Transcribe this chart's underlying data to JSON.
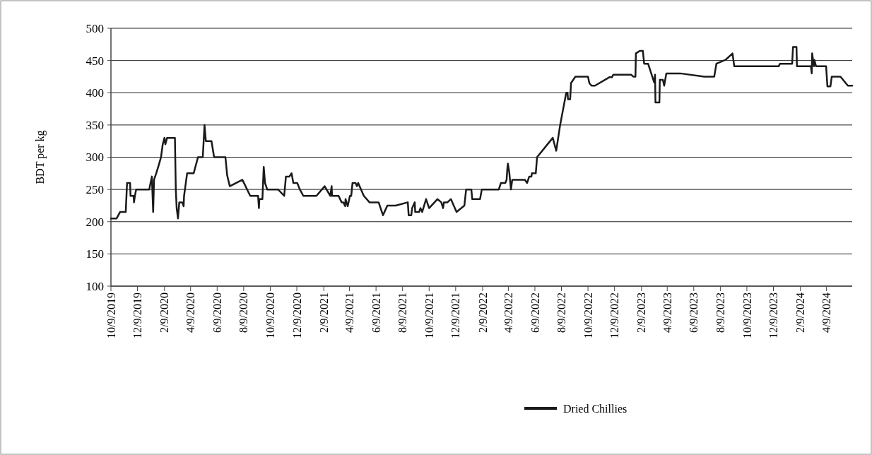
{
  "chart_data": {
    "type": "line",
    "ylabel": "BDT per kg",
    "ylim": [
      100,
      500
    ],
    "yticks": [
      100,
      150,
      200,
      250,
      300,
      350,
      400,
      450,
      500
    ],
    "grid": "y",
    "legend": "bottom",
    "line_style": "solid",
    "marker": "none",
    "xlim": [
      "2019-10-09",
      "2024-06-07"
    ],
    "xticks": [
      {
        "value": "2019-10-09",
        "label": "10/9/2019"
      },
      {
        "value": "2019-12-09",
        "label": "12/9/2019"
      },
      {
        "value": "2020-02-09",
        "label": "2/9/2020"
      },
      {
        "value": "2020-04-09",
        "label": "4/9/2020"
      },
      {
        "value": "2020-06-09",
        "label": "6/9/2020"
      },
      {
        "value": "2020-08-09",
        "label": "8/9/2020"
      },
      {
        "value": "2020-10-09",
        "label": "10/9/2020"
      },
      {
        "value": "2020-12-09",
        "label": "12/9/2020"
      },
      {
        "value": "2021-02-09",
        "label": "2/9/2021"
      },
      {
        "value": "2021-04-09",
        "label": "4/9/2021"
      },
      {
        "value": "2021-06-09",
        "label": "6/9/2021"
      },
      {
        "value": "2021-08-09",
        "label": "8/9/2021"
      },
      {
        "value": "2021-10-09",
        "label": "10/9/2021"
      },
      {
        "value": "2021-12-09",
        "label": "12/9/2021"
      },
      {
        "value": "2022-02-09",
        "label": "2/9/2022"
      },
      {
        "value": "2022-04-09",
        "label": "4/9/2022"
      },
      {
        "value": "2022-06-09",
        "label": "6/9/2022"
      },
      {
        "value": "2022-08-09",
        "label": "8/9/2022"
      },
      {
        "value": "2022-10-09",
        "label": "10/9/2022"
      },
      {
        "value": "2022-12-09",
        "label": "12/9/2022"
      },
      {
        "value": "2023-02-09",
        "label": "2/9/2023"
      },
      {
        "value": "2023-04-09",
        "label": "4/9/2023"
      },
      {
        "value": "2023-06-09",
        "label": "6/9/2023"
      },
      {
        "value": "2023-08-09",
        "label": "8/9/2023"
      },
      {
        "value": "2023-10-09",
        "label": "10/9/2023"
      },
      {
        "value": "2023-12-09",
        "label": "12/9/2023"
      },
      {
        "value": "2024-02-09",
        "label": "2/9/2024"
      },
      {
        "value": "2024-04-09",
        "label": "4/9/2024"
      }
    ],
    "series": [
      {
        "name": "Dried Chillies",
        "color": "#1a1a1a",
        "x": [
          "2019-10-09",
          "2019-10-22",
          "2019-10-30",
          "2019-11-12",
          "2019-11-15",
          "2019-11-22",
          "2019-11-23",
          "2019-11-30",
          "2019-12-01",
          "2019-12-03",
          "2019-12-06",
          "2020-01-05",
          "2020-01-08",
          "2020-01-11",
          "2020-01-14",
          "2020-01-16",
          "2020-01-21",
          "2020-01-27",
          "2020-02-01",
          "2020-02-05",
          "2020-02-09",
          "2020-02-11",
          "2020-02-15",
          "2020-03-04",
          "2020-03-06",
          "2020-03-08",
          "2020-03-11",
          "2020-03-14",
          "2020-03-21",
          "2020-03-24",
          "2020-03-25",
          "2020-04-01",
          "2020-04-16",
          "2020-04-26",
          "2020-05-07",
          "2020-05-11",
          "2020-05-14",
          "2020-05-27",
          "2020-06-02",
          "2020-06-28",
          "2020-07-02",
          "2020-07-08",
          "2020-08-06",
          "2020-08-24",
          "2020-09-11",
          "2020-09-13",
          "2020-09-14",
          "2020-09-21",
          "2020-09-24",
          "2020-09-27",
          "2020-10-02",
          "2020-10-27",
          "2020-11-10",
          "2020-11-14",
          "2020-11-22",
          "2020-11-27",
          "2020-12-01",
          "2020-12-10",
          "2020-12-16",
          "2020-12-24",
          "2021-01-23",
          "2021-02-11",
          "2021-02-24",
          "2021-02-27",
          "2021-02-28",
          "2021-03-15",
          "2021-03-22",
          "2021-03-26",
          "2021-03-30",
          "2021-03-31",
          "2021-04-05",
          "2021-04-10",
          "2021-04-13",
          "2021-04-16",
          "2021-04-23",
          "2021-04-26",
          "2021-04-29",
          "2021-05-12",
          "2021-05-25",
          "2021-06-15",
          "2021-06-25",
          "2021-07-05",
          "2021-07-24",
          "2021-08-21",
          "2021-08-23",
          "2021-08-29",
          "2021-08-31",
          "2021-09-06",
          "2021-09-07",
          "2021-09-16",
          "2021-09-19",
          "2021-09-23",
          "2021-10-02",
          "2021-10-09",
          "2021-10-28",
          "2021-11-06",
          "2021-11-10",
          "2021-11-12",
          "2021-11-20",
          "2021-11-28",
          "2021-12-11",
          "2021-12-29",
          "2022-01-02",
          "2022-01-14",
          "2022-01-16",
          "2022-02-03",
          "2022-02-07",
          "2022-03-10",
          "2022-03-18",
          "2022-03-23",
          "2022-04-02",
          "2022-04-05",
          "2022-04-07",
          "2022-04-08",
          "2022-04-11",
          "2022-04-15",
          "2022-04-18",
          "2022-05-17",
          "2022-05-22",
          "2022-05-27",
          "2022-06-01",
          "2022-06-02",
          "2022-06-11",
          "2022-06-14",
          "2022-07-20",
          "2022-07-28",
          "2022-08-06",
          "2022-08-20",
          "2022-08-23",
          "2022-08-24",
          "2022-08-29",
          "2022-08-31",
          "2022-09-10",
          "2022-10-09",
          "2022-10-12",
          "2022-10-17",
          "2022-10-25",
          "2022-11-27",
          "2022-12-03",
          "2022-12-06",
          "2023-01-16",
          "2023-01-21",
          "2023-01-26",
          "2023-01-27",
          "2023-02-05",
          "2023-02-12",
          "2023-02-15",
          "2023-02-24",
          "2023-03-10",
          "2023-03-12",
          "2023-03-13",
          "2023-03-22",
          "2023-03-23",
          "2023-03-30",
          "2023-04-02",
          "2023-04-07",
          "2023-05-09",
          "2023-07-03",
          "2023-07-26",
          "2023-07-31",
          "2023-08-21",
          "2023-09-06",
          "2023-09-10",
          "2023-12-21",
          "2023-12-24",
          "2024-01-21",
          "2024-01-23",
          "2024-01-31",
          "2024-02-01",
          "2024-03-04",
          "2024-03-06",
          "2024-03-07",
          "2024-03-11",
          "2024-03-12",
          "2024-03-16",
          "2024-04-08",
          "2024-04-11",
          "2024-04-18",
          "2024-04-21",
          "2024-05-11",
          "2024-05-28",
          "2024-06-07"
        ],
        "values": [
          205,
          205,
          215,
          215,
          260,
          260,
          240,
          240,
          230,
          240,
          250,
          250,
          260,
          270,
          215,
          265,
          275,
          288,
          300,
          320,
          330,
          320,
          330,
          330,
          250,
          221,
          205,
          230,
          230,
          224,
          240,
          275,
          275,
          300,
          300,
          350,
          325,
          325,
          300,
          300,
          272,
          255,
          265,
          240,
          240,
          221,
          235,
          235,
          285,
          260,
          250,
          250,
          240,
          270,
          270,
          275,
          260,
          260,
          250,
          240,
          240,
          255,
          240,
          255,
          240,
          240,
          230,
          230,
          224,
          235,
          224,
          240,
          240,
          260,
          260,
          255,
          260,
          240,
          230,
          230,
          210,
          225,
          225,
          230,
          210,
          210,
          221,
          230,
          215,
          215,
          221,
          215,
          235,
          221,
          235,
          230,
          221,
          230,
          230,
          235,
          215,
          225,
          250,
          250,
          235,
          235,
          250,
          250,
          250,
          260,
          260,
          265,
          285,
          290,
          277,
          250,
          265,
          265,
          260,
          270,
          270,
          275,
          275,
          300,
          330,
          310,
          350,
          400,
          400,
          390,
          390,
          415,
          425,
          425,
          415,
          411,
          411,
          424,
          424,
          428,
          428,
          425,
          425,
          461,
          465,
          465,
          445,
          445,
          416,
          428,
          385,
          385,
          420,
          420,
          411,
          430,
          430,
          425,
          425,
          445,
          451,
          461,
          441,
          441,
          445,
          445,
          471,
          471,
          441,
          441,
          430,
          461,
          441,
          451,
          441,
          441,
          410,
          410,
          425,
          425,
          411,
          411
        ]
      }
    ]
  }
}
